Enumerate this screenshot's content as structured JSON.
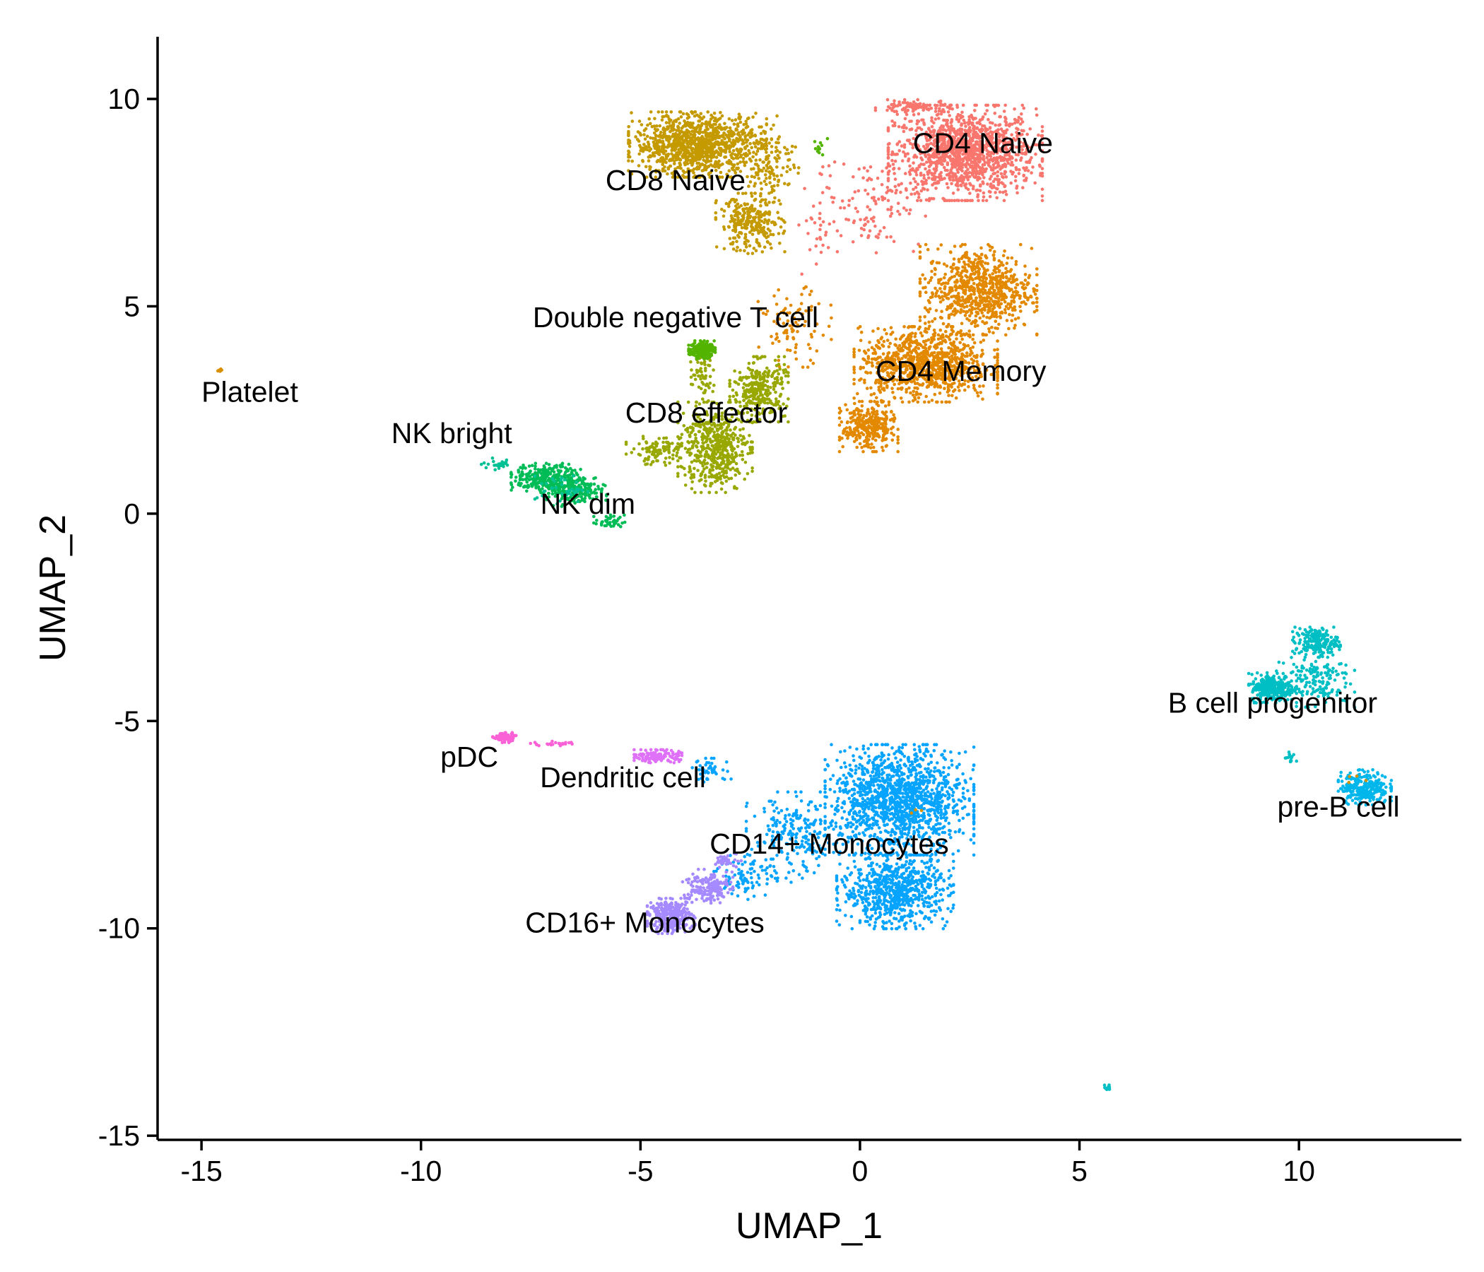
{
  "chart_data": {
    "type": "scatter",
    "title": "",
    "xlabel": "UMAP_1",
    "ylabel": "UMAP_2",
    "xlim": [
      -16.0,
      13.7
    ],
    "ylim": [
      -15.1,
      11.5
    ],
    "x_ticks": [
      -15,
      -10,
      -5,
      0,
      5,
      10
    ],
    "y_ticks": [
      -15,
      -10,
      -5,
      0,
      5,
      10
    ],
    "x_tick_labels": [
      "-15",
      "-10",
      "-5",
      "0",
      "5",
      "10"
    ],
    "y_tick_labels": [
      "-15",
      "-10",
      "-5",
      "0",
      "5",
      "10"
    ],
    "grid": false,
    "legend": "none",
    "clusters": [
      {
        "name": "CD4 Naive",
        "color": "#F8766D",
        "label_xy": [
          2.8,
          8.7
        ],
        "points": [
          {
            "cx": 2.4,
            "cy": 8.7,
            "sx": 1.45,
            "sy": 0.95,
            "n": 1300
          },
          {
            "cx": 1.2,
            "cy": 9.8,
            "sx": 0.7,
            "sy": 0.15,
            "n": 90
          },
          {
            "cx": 0.3,
            "cy": 7.5,
            "sx": 1.0,
            "sy": 1.0,
            "n": 110
          },
          {
            "cx": -1.0,
            "cy": 7.0,
            "sx": 0.4,
            "sy": 1.2,
            "n": 35
          }
        ]
      },
      {
        "name": "CD4 Memory",
        "color": "#E38900",
        "label_xy": [
          2.3,
          3.2
        ],
        "points": [
          {
            "cx": 2.7,
            "cy": 5.4,
            "sx": 1.1,
            "sy": 0.9,
            "n": 750
          },
          {
            "cx": 1.5,
            "cy": 3.6,
            "sx": 1.35,
            "sy": 0.75,
            "n": 950
          },
          {
            "cx": 0.2,
            "cy": 2.1,
            "sx": 0.55,
            "sy": 0.5,
            "n": 320
          },
          {
            "cx": -1.5,
            "cy": 4.5,
            "sx": 0.7,
            "sy": 0.8,
            "n": 90
          }
        ]
      },
      {
        "name": "CD8 Naive",
        "color": "#C49A00",
        "label_xy": [
          -4.2,
          7.8
        ],
        "points": [
          {
            "cx": -3.7,
            "cy": 8.9,
            "sx": 1.3,
            "sy": 0.65,
            "n": 1100
          },
          {
            "cx": -2.5,
            "cy": 7.0,
            "sx": 0.65,
            "sy": 0.6,
            "n": 280
          },
          {
            "cx": -2.0,
            "cy": 8.5,
            "sx": 0.5,
            "sy": 0.9,
            "n": 120
          }
        ]
      },
      {
        "name": "CD8 effector",
        "color": "#99A800",
        "label_xy": [
          -3.5,
          2.2
        ],
        "points": [
          {
            "cx": -3.3,
            "cy": 1.6,
            "sx": 0.7,
            "sy": 0.9,
            "n": 520
          },
          {
            "cx": -2.3,
            "cy": 3.0,
            "sx": 0.55,
            "sy": 0.65,
            "n": 300
          },
          {
            "cx": -4.6,
            "cy": 1.5,
            "sx": 0.6,
            "sy": 0.3,
            "n": 110
          },
          {
            "cx": -3.6,
            "cy": 3.3,
            "sx": 0.25,
            "sy": 0.5,
            "n": 60
          }
        ]
      },
      {
        "name": "Double negative T cell",
        "color": "#53B400",
        "label_xy": [
          -4.2,
          4.5
        ],
        "points": [
          {
            "cx": -3.6,
            "cy": 3.95,
            "sx": 0.25,
            "sy": 0.18,
            "n": 170
          },
          {
            "cx": -0.9,
            "cy": 8.8,
            "sx": 0.15,
            "sy": 0.2,
            "n": 12
          }
        ]
      },
      {
        "name": "NK bright",
        "color": "#00BC56",
        "label_xy": [
          -9.3,
          1.7
        ],
        "points": [
          {
            "cx": -7.1,
            "cy": 0.85,
            "sx": 0.7,
            "sy": 0.3,
            "n": 320
          },
          {
            "cx": -6.5,
            "cy": 0.5,
            "sx": 0.6,
            "sy": 0.3,
            "n": 150
          },
          {
            "cx": -5.7,
            "cy": -0.2,
            "sx": 0.3,
            "sy": 0.15,
            "n": 40
          }
        ]
      },
      {
        "name": "NK dim",
        "color": "#00C094",
        "label_xy": [
          -6.2,
          0.0
        ],
        "points": [
          {
            "cx": -8.2,
            "cy": 1.2,
            "sx": 0.35,
            "sy": 0.12,
            "n": 25
          },
          {
            "cx": -6.8,
            "cy": 0.6,
            "sx": 0.5,
            "sy": 0.3,
            "n": 40
          }
        ]
      },
      {
        "name": "B cell progenitor",
        "color": "#00BFC4",
        "label_xy": [
          9.4,
          -4.8
        ],
        "points": [
          {
            "cx": 9.4,
            "cy": -4.2,
            "sx": 0.45,
            "sy": 0.3,
            "n": 300
          },
          {
            "cx": 10.4,
            "cy": -3.1,
            "sx": 0.45,
            "sy": 0.3,
            "n": 190
          },
          {
            "cx": 10.3,
            "cy": -4.0,
            "sx": 0.8,
            "sy": 0.55,
            "n": 160
          },
          {
            "cx": 9.8,
            "cy": -5.9,
            "sx": 0.12,
            "sy": 0.15,
            "n": 15
          },
          {
            "cx": 5.65,
            "cy": -13.85,
            "sx": 0.07,
            "sy": 0.06,
            "n": 12
          }
        ]
      },
      {
        "name": "pre-B cell",
        "color": "#00B6EB",
        "label_xy": [
          10.9,
          -7.3
        ],
        "points": [
          {
            "cx": 11.5,
            "cy": -6.6,
            "sx": 0.5,
            "sy": 0.35,
            "n": 260
          }
        ]
      },
      {
        "name": "CD14+ Monocytes",
        "color": "#06A4FF",
        "label_xy": [
          -0.7,
          -8.2
        ],
        "points": [
          {
            "cx": 0.9,
            "cy": -6.9,
            "sx": 1.4,
            "sy": 1.1,
            "n": 1400
          },
          {
            "cx": 0.8,
            "cy": -9.1,
            "sx": 1.1,
            "sy": 0.75,
            "n": 750
          },
          {
            "cx": -1.5,
            "cy": -7.8,
            "sx": 0.9,
            "sy": 0.9,
            "n": 220
          },
          {
            "cx": -3.4,
            "cy": -6.2,
            "sx": 0.45,
            "sy": 0.25,
            "n": 45
          },
          {
            "cx": -2.6,
            "cy": -8.7,
            "sx": 0.6,
            "sy": 0.5,
            "n": 90
          }
        ]
      },
      {
        "name": "CD16+ Monocytes",
        "color": "#A58AFF",
        "label_xy": [
          -4.9,
          -10.1
        ],
        "points": [
          {
            "cx": -4.3,
            "cy": -9.7,
            "sx": 0.45,
            "sy": 0.35,
            "n": 320
          },
          {
            "cx": -3.5,
            "cy": -9.0,
            "sx": 0.5,
            "sy": 0.35,
            "n": 160
          },
          {
            "cx": -3.0,
            "cy": -8.4,
            "sx": 0.25,
            "sy": 0.2,
            "n": 40
          }
        ]
      },
      {
        "name": "Dendritic cell",
        "color": "#DF70F8",
        "label_xy": [
          -5.4,
          -6.6
        ],
        "points": [
          {
            "cx": -4.6,
            "cy": -5.85,
            "sx": 0.45,
            "sy": 0.13,
            "n": 140
          }
        ]
      },
      {
        "name": "pDC",
        "color": "#FB61D7",
        "label_xy": [
          -8.9,
          -6.1
        ],
        "points": [
          {
            "cx": -8.1,
            "cy": -5.4,
            "sx": 0.22,
            "sy": 0.1,
            "n": 90
          },
          {
            "cx": -6.9,
            "cy": -5.55,
            "sx": 0.5,
            "sy": 0.05,
            "n": 25
          }
        ]
      },
      {
        "name": "Platelet",
        "color": "#D89000",
        "label_xy": [
          -13.9,
          2.7
        ],
        "points": [
          {
            "cx": -14.6,
            "cy": 3.45,
            "sx": 0.05,
            "sy": 0.04,
            "n": 10
          },
          {
            "cx": 1.2,
            "cy": -7.3,
            "sx": 0.2,
            "sy": 0.2,
            "n": 3
          },
          {
            "cx": 11.4,
            "cy": -6.4,
            "sx": 0.4,
            "sy": 0.3,
            "n": 4
          }
        ]
      }
    ]
  }
}
